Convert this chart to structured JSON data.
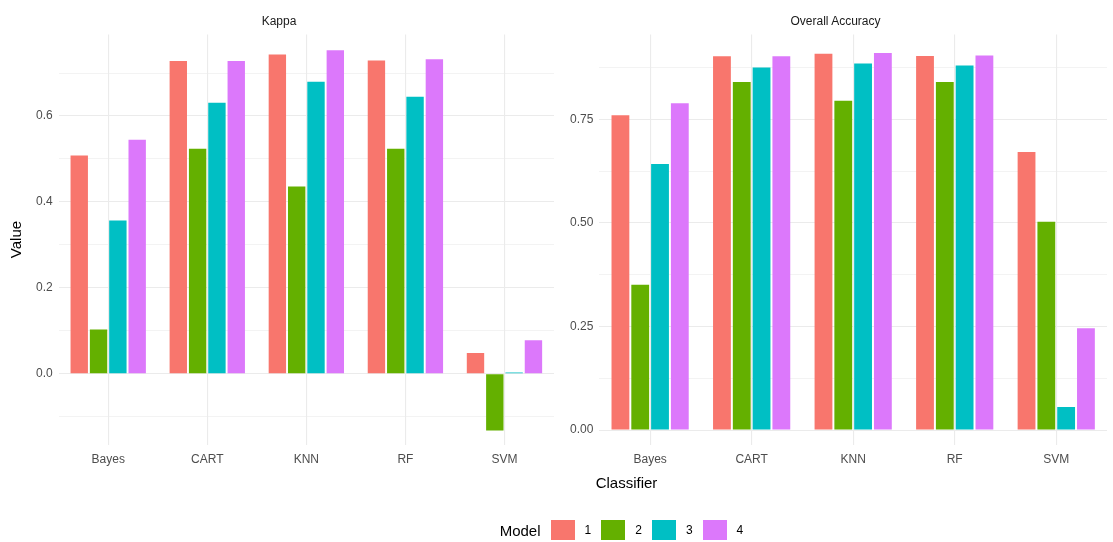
{
  "chart_data": [
    {
      "type": "bar",
      "title": "Kappa",
      "ylabel": "Value",
      "xlabel": "Classifier",
      "legend_title": "Model",
      "legend": "bottom",
      "grid": true,
      "categories": [
        "Bayes",
        "CART",
        "KNN",
        "RF",
        "SVM"
      ],
      "ylim": [
        -0.165,
        0.79
      ],
      "yticks": [
        {
          "value": -0.1,
          "label": null
        },
        {
          "value": 0,
          "label": "0.0"
        },
        {
          "value": 0.1,
          "label": null
        },
        0.2,
        {
          "value": 0.3,
          "label": null
        },
        0.4,
        {
          "value": 0.5,
          "label": null
        },
        0.6,
        {
          "value": 0.7,
          "label": null
        }
      ],
      "series": [
        {
          "name": "1",
          "color": "#f8766d",
          "values": [
            0.508,
            0.728,
            0.743,
            0.729,
            0.048
          ]
        },
        {
          "name": "2",
          "color": "#64b000",
          "values": [
            0.103,
            0.524,
            0.436,
            0.524,
            -0.132
          ]
        },
        {
          "name": "3",
          "color": "#00bfc4",
          "values": [
            0.357,
            0.631,
            0.68,
            0.645,
            0.003
          ]
        },
        {
          "name": "4",
          "color": "#dc78fb",
          "values": [
            0.545,
            0.728,
            0.753,
            0.732,
            0.078
          ]
        }
      ]
    },
    {
      "type": "bar",
      "title": "Overall Accuracy",
      "grid": true,
      "categories": [
        "Bayes",
        "CART",
        "KNN",
        "RF",
        "SVM"
      ],
      "ylim": [
        -0.035,
        0.955
      ],
      "yticks": [
        {
          "value": 0,
          "label": "0.00"
        },
        {
          "value": 0.125,
          "label": null
        },
        0.25,
        {
          "value": 0.375,
          "label": null
        },
        {
          "value": 0.5,
          "label": "0.50"
        },
        {
          "value": 0.625,
          "label": null
        },
        0.75,
        {
          "value": 0.875,
          "label": null
        }
      ],
      "series": [
        {
          "name": "1",
          "color": "#f8766d",
          "values": [
            0.76,
            0.902,
            0.908,
            0.903,
            0.671
          ]
        },
        {
          "name": "2",
          "color": "#64b000",
          "values": [
            0.351,
            0.84,
            0.795,
            0.84,
            0.503
          ]
        },
        {
          "name": "3",
          "color": "#00bfc4",
          "values": [
            0.642,
            0.875,
            0.885,
            0.88,
            0.056
          ]
        },
        {
          "name": "4",
          "color": "#dc78fb",
          "values": [
            0.789,
            0.902,
            0.91,
            0.904,
            0.246
          ]
        }
      ]
    }
  ]
}
